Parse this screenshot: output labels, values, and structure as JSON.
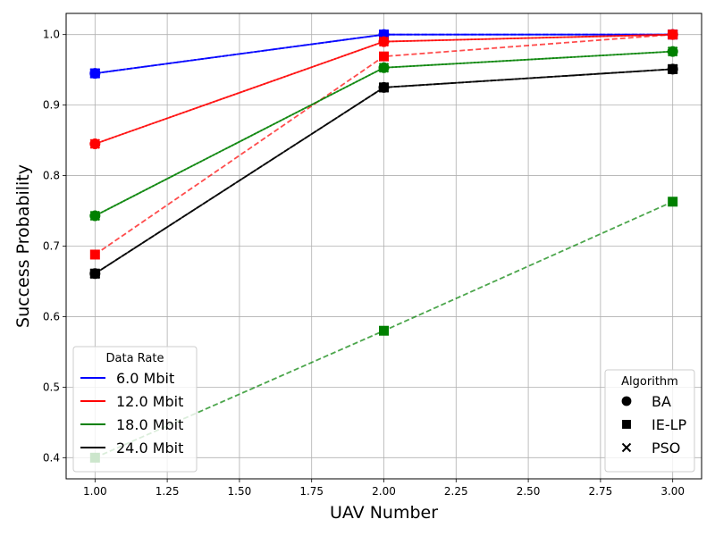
{
  "chart_data": {
    "type": "line",
    "xlabel": "UAV Number",
    "ylabel": "Success Probability",
    "xlim": [
      0.9,
      3.1
    ],
    "ylim": [
      0.37,
      1.03
    ],
    "x_ticks": [
      1.0,
      1.25,
      1.5,
      1.75,
      2.0,
      2.25,
      2.5,
      2.75,
      3.0
    ],
    "x_tick_labels": [
      "1.00",
      "1.25",
      "1.50",
      "1.75",
      "2.00",
      "2.25",
      "2.50",
      "2.75",
      "3.00"
    ],
    "y_ticks": [
      0.4,
      0.5,
      0.6,
      0.7,
      0.8,
      0.9,
      1.0
    ],
    "y_tick_labels": [
      "0.4",
      "0.5",
      "0.6",
      "0.7",
      "0.8",
      "0.9",
      "1.0"
    ],
    "grid": true,
    "x": [
      1,
      2,
      3
    ],
    "series": [
      {
        "rate": "6.0 Mbit",
        "algorithm": "BA",
        "color": "#0000ff",
        "style": "solid",
        "marker": "circle",
        "values": [
          0.945,
          1.0,
          1.0
        ]
      },
      {
        "rate": "6.0 Mbit",
        "algorithm": "IE-LP",
        "color": "#0000ff",
        "style": "dashed",
        "marker": "square",
        "values": [
          0.945,
          1.0,
          1.0
        ]
      },
      {
        "rate": "6.0 Mbit",
        "algorithm": "PSO",
        "color": "#0000ff",
        "style": "dotted",
        "marker": "x",
        "values": [
          0.945,
          1.0,
          1.0
        ]
      },
      {
        "rate": "12.0 Mbit",
        "algorithm": "BA",
        "color": "#ff0000",
        "style": "solid",
        "marker": "circle",
        "values": [
          0.845,
          0.99,
          1.0
        ]
      },
      {
        "rate": "12.0 Mbit",
        "algorithm": "IE-LP",
        "color": "#ff0000",
        "style": "dashed",
        "marker": "square",
        "values": [
          0.688,
          0.969,
          1.0
        ]
      },
      {
        "rate": "12.0 Mbit",
        "algorithm": "PSO",
        "color": "#ff0000",
        "style": "dotted",
        "marker": "x",
        "values": [
          0.845,
          0.99,
          1.0
        ]
      },
      {
        "rate": "18.0 Mbit",
        "algorithm": "BA",
        "color": "#008000",
        "style": "solid",
        "marker": "circle",
        "values": [
          0.743,
          0.953,
          0.976
        ]
      },
      {
        "rate": "18.0 Mbit",
        "algorithm": "IE-LP",
        "color": "#008000",
        "style": "dashed",
        "marker": "square",
        "values": [
          0.4,
          0.58,
          0.763
        ]
      },
      {
        "rate": "18.0 Mbit",
        "algorithm": "PSO",
        "color": "#008000",
        "style": "dotted",
        "marker": "x",
        "values": [
          0.743,
          0.953,
          0.976
        ]
      },
      {
        "rate": "24.0 Mbit",
        "algorithm": "BA",
        "color": "#000000",
        "style": "solid",
        "marker": "circle",
        "values": [
          0.661,
          0.925,
          0.951
        ]
      },
      {
        "rate": "24.0 Mbit",
        "algorithm": "IE-LP",
        "color": "#000000",
        "style": "dashed",
        "marker": "square",
        "values": [
          0.661,
          0.925,
          0.951
        ]
      },
      {
        "rate": "24.0 Mbit",
        "algorithm": "PSO",
        "color": "#000000",
        "style": "dotted",
        "marker": "x",
        "values": [
          0.661,
          0.925,
          0.951
        ]
      }
    ],
    "legend_rate": {
      "title": "Data Rate",
      "placement": "lower-left",
      "entries": [
        {
          "label": "6.0 Mbit",
          "color": "#0000ff"
        },
        {
          "label": "12.0 Mbit",
          "color": "#ff0000"
        },
        {
          "label": "18.0 Mbit",
          "color": "#008000"
        },
        {
          "label": "24.0 Mbit",
          "color": "#000000"
        }
      ]
    },
    "legend_algorithm": {
      "title": "Algorithm",
      "placement": "lower-right",
      "entries": [
        {
          "label": "BA",
          "marker": "circle"
        },
        {
          "label": "IE-LP",
          "marker": "square"
        },
        {
          "label": "PSO",
          "marker": "x"
        }
      ]
    }
  }
}
